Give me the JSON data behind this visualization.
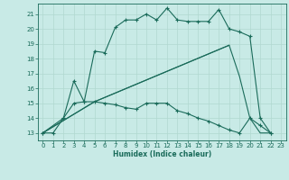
{
  "xlabel": "Humidex (Indice chaleur)",
  "xlim": [
    -0.5,
    23.5
  ],
  "ylim": [
    12.5,
    21.7
  ],
  "yticks": [
    13,
    14,
    15,
    16,
    17,
    18,
    19,
    20,
    21
  ],
  "xticks": [
    0,
    1,
    2,
    3,
    4,
    5,
    6,
    7,
    8,
    9,
    10,
    11,
    12,
    13,
    14,
    15,
    16,
    17,
    18,
    19,
    20,
    21,
    22,
    23
  ],
  "bg_color": "#c8eae6",
  "line_color": "#1a6b5a",
  "grid_color": "#b0d8d0",
  "line1_x": [
    0,
    1,
    2,
    3,
    4,
    5,
    6,
    7,
    8,
    9,
    10,
    11,
    12,
    13,
    14,
    15,
    16,
    17,
    18,
    19,
    20,
    21,
    22
  ],
  "line1_y": [
    13,
    13,
    14,
    15,
    15.1,
    18.5,
    18.4,
    20.1,
    20.6,
    20.6,
    21.0,
    20.6,
    21.4,
    20.6,
    20.5,
    20.5,
    20.5,
    21.3,
    20.0,
    19.8,
    19.5,
    14.0,
    13.0
  ],
  "line2_x": [
    0,
    2,
    3,
    4,
    5,
    6,
    7,
    8,
    9,
    10,
    11,
    12,
    13,
    14,
    15,
    16,
    17,
    18,
    19,
    20,
    21,
    22
  ],
  "line2_y": [
    13,
    14,
    16.5,
    15.1,
    15.1,
    15.0,
    14.9,
    14.7,
    14.6,
    15.0,
    15.0,
    15.0,
    14.5,
    14.3,
    14.0,
    13.8,
    13.5,
    13.2,
    13.0,
    14.0,
    13.5,
    13.0
  ],
  "line3_x": [
    0,
    5,
    18,
    19,
    20,
    21,
    22
  ],
  "line3_y": [
    13,
    15.1,
    18.9,
    16.8,
    14.0,
    13.0,
    13.0
  ],
  "line4_x": [
    0,
    5,
    18
  ],
  "line4_y": [
    13,
    15.1,
    18.9
  ]
}
